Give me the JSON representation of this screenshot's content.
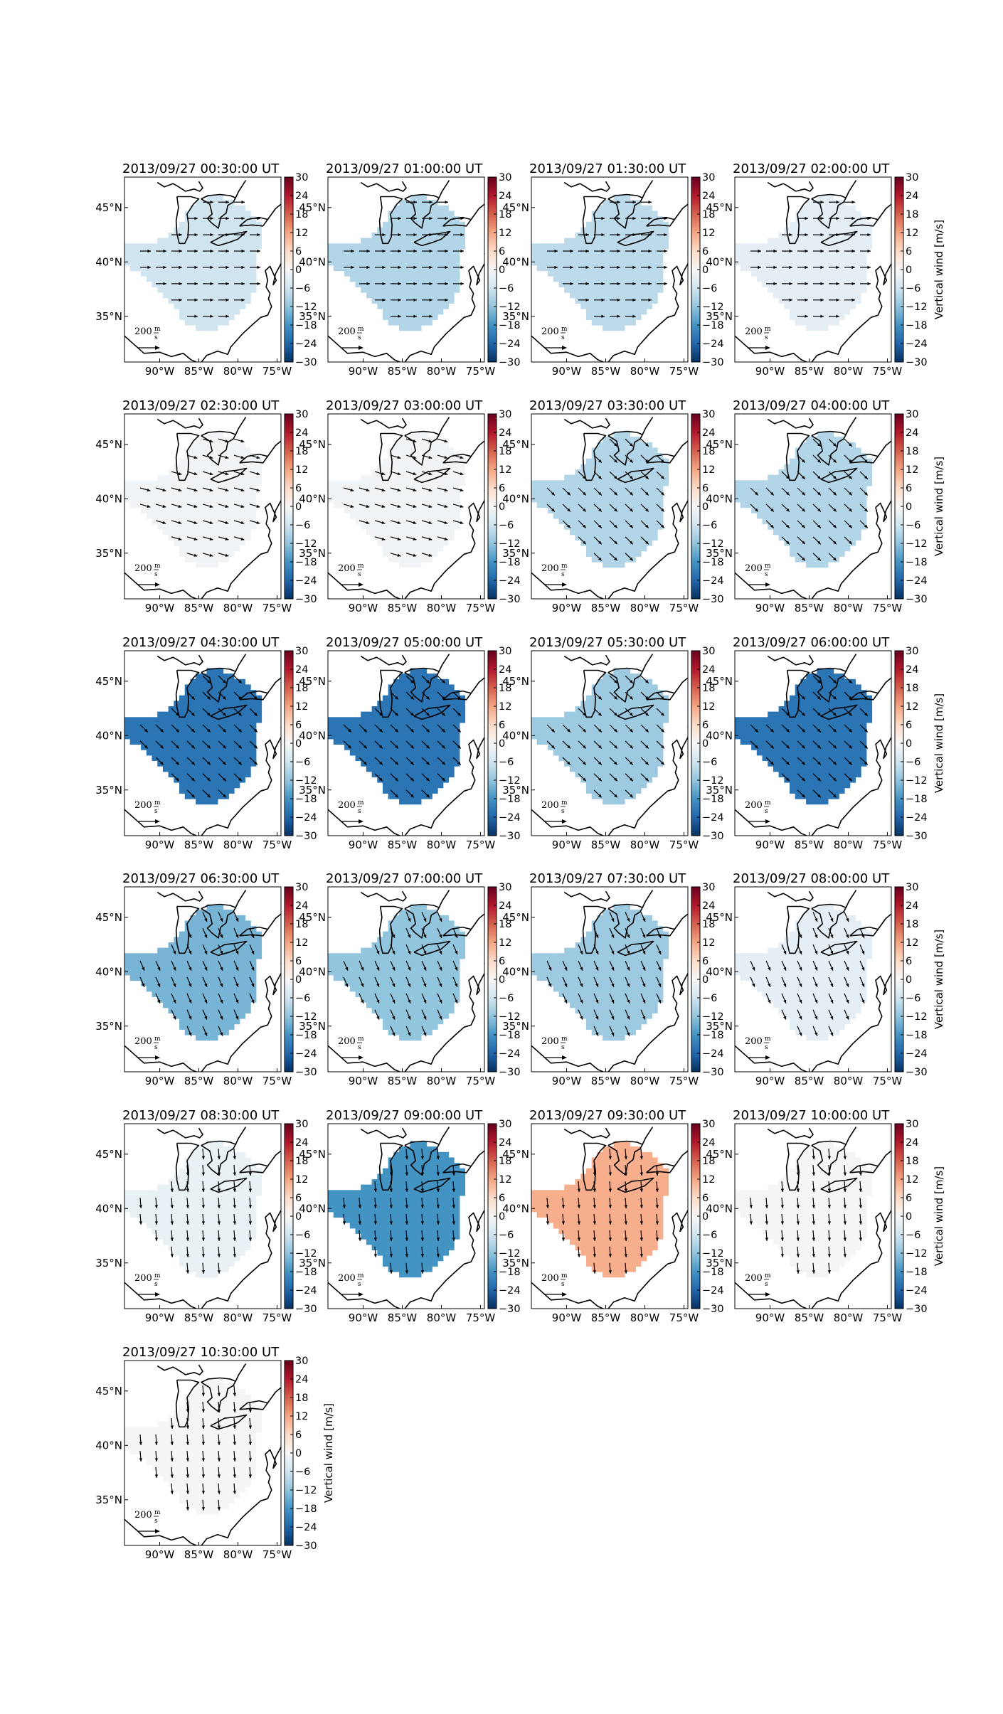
{
  "figure": {
    "colorbar": {
      "label": "Vertical wind [m/s]",
      "ticks": [
        "30",
        "24",
        "18",
        "12",
        "6",
        "0",
        "−6",
        "−12",
        "−18",
        "−24",
        "−30"
      ],
      "range": [
        -30,
        30
      ],
      "colormap": "RdBu_r",
      "colors": [
        "#053061",
        "#2166ac",
        "#4393c3",
        "#92c5de",
        "#d1e5f0",
        "#f7f7f7",
        "#fddbc7",
        "#f4a582",
        "#d6604d",
        "#b2182b",
        "#67001f"
      ]
    },
    "lon_ticks": [
      "90°W",
      "85°W",
      "80°W",
      "75°W"
    ],
    "lat_ticks": [
      "45°N",
      "40°N",
      "35°N"
    ],
    "key": {
      "value": "200",
      "unit_num": "m",
      "unit_den": "s"
    },
    "panels": [
      {
        "title": "2013/09/27 00:30:00 UT",
        "vertical_wind": -6,
        "arrows": "east"
      },
      {
        "title": "2013/09/27 01:00:00 UT",
        "vertical_wind": -9,
        "arrows": "east"
      },
      {
        "title": "2013/09/27 01:30:00 UT",
        "vertical_wind": -8,
        "arrows": "east"
      },
      {
        "title": "2013/09/27 02:00:00 UT",
        "vertical_wind": -3,
        "arrows": "east"
      },
      {
        "title": "2013/09/27 02:30:00 UT",
        "vertical_wind": -1,
        "arrows": "east-southeast"
      },
      {
        "title": "2013/09/27 03:00:00 UT",
        "vertical_wind": -1,
        "arrows": "east-southeast"
      },
      {
        "title": "2013/09/27 03:30:00 UT",
        "vertical_wind": -9,
        "arrows": "southeast"
      },
      {
        "title": "2013/09/27 04:00:00 UT",
        "vertical_wind": -9,
        "arrows": "southeast"
      },
      {
        "title": "2013/09/27 04:30:00 UT",
        "vertical_wind": -22,
        "arrows": "southeast"
      },
      {
        "title": "2013/09/27 05:00:00 UT",
        "vertical_wind": -22,
        "arrows": "southeast"
      },
      {
        "title": "2013/09/27 05:30:00 UT",
        "vertical_wind": -11,
        "arrows": "southeast"
      },
      {
        "title": "2013/09/27 06:00:00 UT",
        "vertical_wind": -22,
        "arrows": "southeast"
      },
      {
        "title": "2013/09/27 06:30:00 UT",
        "vertical_wind": -14,
        "arrows": "south-southeast"
      },
      {
        "title": "2013/09/27 07:00:00 UT",
        "vertical_wind": -12,
        "arrows": "south-southeast"
      },
      {
        "title": "2013/09/27 07:30:00 UT",
        "vertical_wind": -11,
        "arrows": "south-southeast"
      },
      {
        "title": "2013/09/27 08:00:00 UT",
        "vertical_wind": -3,
        "arrows": "south-southeast"
      },
      {
        "title": "2013/09/27 08:30:00 UT",
        "vertical_wind": -2,
        "arrows": "south"
      },
      {
        "title": "2013/09/27 09:00:00 UT",
        "vertical_wind": -18,
        "arrows": "south"
      },
      {
        "title": "2013/09/27 09:30:00 UT",
        "vertical_wind": 11,
        "arrows": "south"
      },
      {
        "title": "2013/09/27 10:00:00 UT",
        "vertical_wind": -0.5,
        "arrows": "south"
      },
      {
        "title": "2013/09/27 10:30:00 UT",
        "vertical_wind": -0.5,
        "arrows": "south"
      }
    ]
  }
}
